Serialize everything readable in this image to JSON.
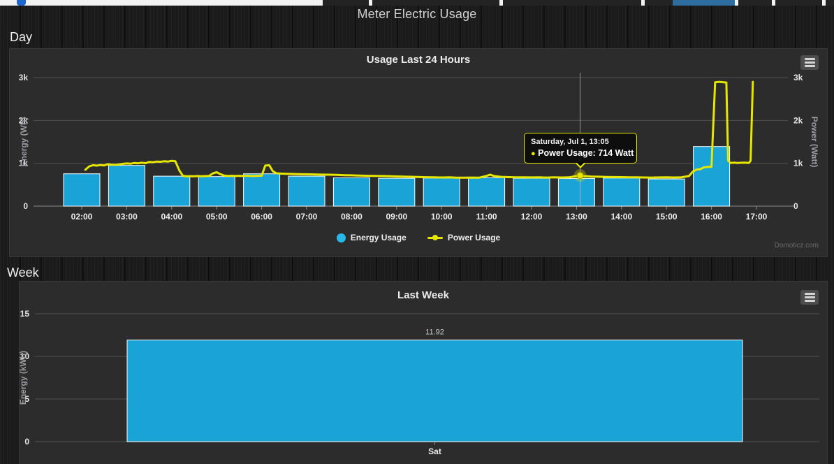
{
  "page": {
    "title": "Meter Electric Usage",
    "day_section_label": "Day",
    "week_section_label": "Week",
    "credits": "Domoticz.com"
  },
  "icons": {
    "export_menu": "hamburger-menu-icon",
    "favicon": "favicon-fragment"
  },
  "colors": {
    "energy_bar": "#1aa3d6",
    "legend_energy_dot": "#29b7e9",
    "power_line": "#e6e600",
    "grid": "#515151",
    "axis_line": "#8a8a8a",
    "crosshair": "#cccccc",
    "panel_bg": "#2c2c2c",
    "active_tab": "#2e6d9f"
  },
  "tooltip": {
    "date": "Saturday, Jul 1, 13:05",
    "bullet": "●",
    "series": "Power Usage:",
    "value": "714 Watt"
  },
  "chart_data": [
    {
      "type": "column+line",
      "title": "Usage Last 24 Hours",
      "x_categories": [
        "02:00",
        "03:00",
        "04:00",
        "05:00",
        "06:00",
        "07:00",
        "08:00",
        "09:00",
        "10:00",
        "11:00",
        "12:00",
        "13:00",
        "14:00",
        "15:00",
        "16:00",
        "17:00"
      ],
      "y_left": {
        "title": "Energy (Wh)",
        "ticks": [
          "0",
          "1k",
          "2k",
          "3k"
        ],
        "tick_values": [
          0,
          1000,
          2000,
          3000
        ],
        "lim": [
          0,
          3000
        ]
      },
      "y_right": {
        "title": "Power (Watt)",
        "ticks": [
          "0",
          "1k",
          "2k",
          "3k"
        ],
        "tick_values": [
          0,
          1000,
          2000,
          3000
        ],
        "lim": [
          0,
          3000
        ]
      },
      "grid": true,
      "legend_position": "bottom-center",
      "series": [
        {
          "name": "Energy Usage",
          "type": "column",
          "unit": "Wh",
          "start_hour": 2,
          "values": [
            755,
            950,
            700,
            690,
            755,
            700,
            660,
            650,
            655,
            665,
            650,
            645,
            655,
            635,
            1390
          ]
        },
        {
          "name": "Power Usage",
          "type": "line",
          "unit": "Watt",
          "points": [
            [
              2.08,
              850
            ],
            [
              2.17,
              930
            ],
            [
              2.25,
              955
            ],
            [
              2.33,
              945
            ],
            [
              2.42,
              958
            ],
            [
              2.5,
              950
            ],
            [
              2.58,
              978
            ],
            [
              2.67,
              965
            ],
            [
              2.75,
              962
            ],
            [
              2.83,
              972
            ],
            [
              2.92,
              988
            ],
            [
              3.0,
              996
            ],
            [
              3.08,
              990
            ],
            [
              3.17,
              1006
            ],
            [
              3.25,
              1000
            ],
            [
              3.33,
              1012
            ],
            [
              3.42,
              1002
            ],
            [
              3.5,
              1032
            ],
            [
              3.58,
              1026
            ],
            [
              3.67,
              1040
            ],
            [
              3.75,
              1036
            ],
            [
              3.83,
              1046
            ],
            [
              3.92,
              1040
            ],
            [
              4.0,
              1056
            ],
            [
              4.08,
              1046
            ],
            [
              4.17,
              835
            ],
            [
              4.25,
              706
            ],
            [
              4.33,
              696
            ],
            [
              4.42,
              700
            ],
            [
              4.5,
              698
            ],
            [
              4.58,
              703
            ],
            [
              4.67,
              698
            ],
            [
              4.75,
              701
            ],
            [
              4.83,
              706
            ],
            [
              4.92,
              766
            ],
            [
              5.0,
              790
            ],
            [
              5.08,
              746
            ],
            [
              5.17,
              712
            ],
            [
              5.25,
              706
            ],
            [
              5.33,
              709
            ],
            [
              5.42,
              705
            ],
            [
              5.5,
              707
            ],
            [
              5.58,
              703
            ],
            [
              5.67,
              709
            ],
            [
              5.75,
              706
            ],
            [
              5.83,
              703
            ],
            [
              5.92,
              707
            ],
            [
              6.0,
              709
            ],
            [
              6.08,
              948
            ],
            [
              6.17,
              954
            ],
            [
              6.25,
              812
            ],
            [
              6.33,
              766
            ],
            [
              6.42,
              759
            ],
            [
              6.5,
              756
            ],
            [
              6.58,
              753
            ],
            [
              6.67,
              751
            ],
            [
              6.75,
              749
            ],
            [
              6.83,
              746
            ],
            [
              7.0,
              743
            ],
            [
              7.17,
              741
            ],
            [
              7.33,
              736
            ],
            [
              7.5,
              733
            ],
            [
              7.67,
              729
            ],
            [
              7.83,
              723
            ],
            [
              8.0,
              719
            ],
            [
              8.17,
              713
            ],
            [
              8.33,
              709
            ],
            [
              8.5,
              706
            ],
            [
              8.67,
              703
            ],
            [
              8.83,
              699
            ],
            [
              9.0,
              693
            ],
            [
              9.17,
              689
            ],
            [
              9.33,
              684
            ],
            [
              9.5,
              679
            ],
            [
              9.67,
              675
            ],
            [
              9.83,
              671
            ],
            [
              10.0,
              668
            ],
            [
              10.17,
              671
            ],
            [
              10.33,
              665
            ],
            [
              10.5,
              663
            ],
            [
              10.67,
              667
            ],
            [
              10.83,
              663
            ],
            [
              11.0,
              706
            ],
            [
              11.08,
              736
            ],
            [
              11.17,
              703
            ],
            [
              11.33,
              683
            ],
            [
              11.5,
              677
            ],
            [
              11.67,
              674
            ],
            [
              11.83,
              672
            ],
            [
              12.0,
              670
            ],
            [
              12.17,
              673
            ],
            [
              12.33,
              667
            ],
            [
              12.5,
              671
            ],
            [
              12.67,
              668
            ],
            [
              12.83,
              672
            ],
            [
              13.0,
              703
            ],
            [
              13.08,
              714
            ],
            [
              13.17,
              701
            ],
            [
              13.33,
              692
            ],
            [
              13.5,
              687
            ],
            [
              13.67,
              682
            ],
            [
              13.83,
              679
            ],
            [
              14.0,
              677
            ],
            [
              14.17,
              673
            ],
            [
              14.33,
              671
            ],
            [
              14.5,
              669
            ],
            [
              14.67,
              667
            ],
            [
              14.83,
              670
            ],
            [
              15.0,
              672
            ],
            [
              15.17,
              669
            ],
            [
              15.33,
              674
            ],
            [
              15.5,
              703
            ],
            [
              15.58,
              800
            ],
            [
              15.67,
              855
            ],
            [
              15.75,
              862
            ],
            [
              15.83,
              905
            ],
            [
              15.92,
              915
            ],
            [
              16.0,
              920
            ],
            [
              16.08,
              2890
            ],
            [
              16.17,
              2900
            ],
            [
              16.25,
              2892
            ],
            [
              16.33,
              2885
            ],
            [
              16.37,
              1065
            ],
            [
              16.42,
              1008
            ],
            [
              16.5,
              1014
            ],
            [
              16.58,
              1006
            ],
            [
              16.67,
              1012
            ],
            [
              16.75,
              1016
            ],
            [
              16.83,
              1008
            ],
            [
              16.87,
              1060
            ],
            [
              16.92,
              2900
            ]
          ]
        }
      ],
      "selected_point": {
        "hour": 13.08,
        "power": 714
      }
    },
    {
      "type": "bar",
      "title": "Last Week",
      "categories": [
        "Sat"
      ],
      "values": [
        11.92
      ],
      "data_labels": [
        "11.92"
      ],
      "xlabel": "",
      "ylabel": "Energy (kWh)",
      "y_ticks": [
        "0",
        "5",
        "10",
        "15"
      ],
      "y_tick_values": [
        0,
        5,
        10,
        15
      ],
      "ylim": [
        0,
        15
      ],
      "grid": true
    }
  ]
}
